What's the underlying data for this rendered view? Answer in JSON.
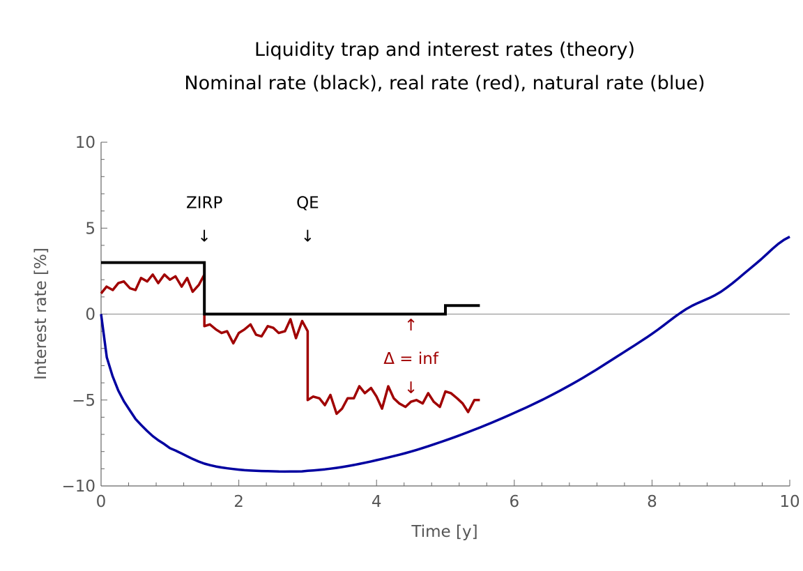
{
  "chart_data": {
    "type": "line",
    "title": "Liquidity trap and interest rates (theory)",
    "subtitle": "Nominal rate (black), real rate (red), natural rate (blue)",
    "xlabel": "Time [y]",
    "ylabel": "Interest rate [%]",
    "xlim": [
      0,
      10
    ],
    "ylim": [
      -10,
      10
    ],
    "x_ticks": [
      0,
      2,
      4,
      6,
      8,
      10
    ],
    "y_ticks": [
      -10,
      -5,
      0,
      5,
      10
    ],
    "x_tick_labels": [
      "0",
      "2",
      "4",
      "6",
      "8",
      "10"
    ],
    "y_tick_labels": [
      "−10",
      "−5",
      "0",
      "5",
      "10"
    ],
    "grid": false,
    "legend": "none",
    "colors": {
      "nominal": "#000000",
      "real": "#a00000",
      "natural": "#0000a0",
      "zero_line": "#888888"
    },
    "series": [
      {
        "key": "nominal",
        "step": true,
        "x": [
          0,
          1.5,
          1.5,
          5.0,
          5.0,
          5.5
        ],
        "y": [
          3,
          3,
          0,
          0,
          0.5,
          0.5
        ]
      },
      {
        "key": "real",
        "x": [
          0,
          0.08,
          0.17,
          0.25,
          0.33,
          0.42,
          0.5,
          0.58,
          0.67,
          0.75,
          0.83,
          0.92,
          1.0,
          1.08,
          1.17,
          1.25,
          1.33,
          1.42,
          1.5,
          1.5,
          1.58,
          1.67,
          1.75,
          1.83,
          1.92,
          2.0,
          2.08,
          2.17,
          2.25,
          2.33,
          2.42,
          2.5,
          2.58,
          2.67,
          2.75,
          2.83,
          2.92,
          3.0,
          3.0,
          3.08,
          3.17,
          3.25,
          3.33,
          3.42,
          3.5,
          3.58,
          3.67,
          3.75,
          3.83,
          3.92,
          4.0,
          4.08,
          4.17,
          4.25,
          4.33,
          4.42,
          4.5,
          4.58,
          4.67,
          4.75,
          4.83,
          4.92,
          5.0,
          5.08,
          5.17,
          5.25,
          5.33,
          5.42,
          5.5
        ],
        "y": [
          1.2,
          1.6,
          1.4,
          1.8,
          1.9,
          1.5,
          1.4,
          2.1,
          1.9,
          2.3,
          1.8,
          2.3,
          2.0,
          2.2,
          1.6,
          2.1,
          1.3,
          1.7,
          2.3,
          -0.7,
          -0.6,
          -0.9,
          -1.1,
          -1.0,
          -1.7,
          -1.1,
          -0.9,
          -0.6,
          -1.2,
          -1.3,
          -0.7,
          -0.8,
          -1.1,
          -1.0,
          -0.3,
          -1.4,
          -0.4,
          -1.0,
          -5.0,
          -4.8,
          -4.9,
          -5.3,
          -4.7,
          -5.8,
          -5.5,
          -4.9,
          -4.9,
          -4.2,
          -4.6,
          -4.3,
          -4.8,
          -5.5,
          -4.2,
          -4.9,
          -5.2,
          -5.4,
          -5.1,
          -5.0,
          -5.2,
          -4.6,
          -5.1,
          -5.4,
          -4.5,
          -4.6,
          -4.9,
          -5.2,
          -5.7,
          -5.0,
          -5.0
        ]
      },
      {
        "key": "natural",
        "formula_points": 120,
        "x": [
          0,
          0.05,
          0.1,
          0.2,
          0.3,
          0.5,
          0.75,
          1.0,
          1.5,
          2.0,
          2.5,
          2.8,
          3.0,
          3.5,
          4.0,
          4.5,
          5.0,
          5.5,
          6.0,
          6.5,
          7.0,
          7.5,
          8.0,
          8.5,
          9.0,
          9.5,
          10.0
        ],
        "y": [
          0,
          -1.9,
          -2.8,
          -4.0,
          -4.9,
          -6.1,
          -7.1,
          -7.8,
          -8.7,
          -9.05,
          -9.15,
          -9.16,
          -9.12,
          -8.9,
          -8.5,
          -8.0,
          -7.35,
          -6.6,
          -5.75,
          -4.8,
          -3.7,
          -2.45,
          -1.15,
          0.3,
          1.3,
          2.9,
          4.5
        ]
      }
    ],
    "annotations": [
      {
        "text": "ZIRP",
        "arrow": "↓",
        "x": 1.5,
        "y": 6.5
      },
      {
        "text": "QE",
        "arrow": "↓",
        "x": 3.0,
        "y": 6.5
      },
      {
        "text": "Δ = inf",
        "up_arrow": "↑",
        "down_arrow": "↓",
        "x": 4.5,
        "y": -2.5
      }
    ]
  }
}
